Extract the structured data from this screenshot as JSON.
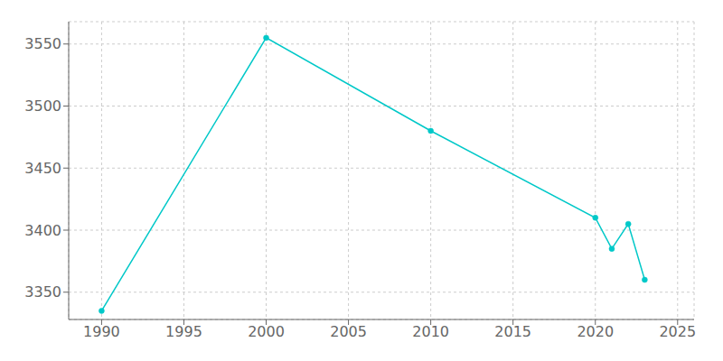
{
  "chart_data": {
    "type": "line",
    "x": [
      1990,
      2000,
      2010,
      2020,
      2021,
      2022,
      2023
    ],
    "values": [
      3335,
      3555,
      3480,
      3410,
      3385,
      3405,
      3360
    ],
    "color": "#00C8C8",
    "marker": "circle",
    "xlim": [
      1988,
      2026
    ],
    "ylim": [
      3328,
      3568
    ],
    "xticks": [
      1990,
      1995,
      2000,
      2005,
      2010,
      2015,
      2020,
      2025
    ],
    "yticks": [
      3350,
      3400,
      3450,
      3500,
      3550
    ],
    "grid": true
  }
}
